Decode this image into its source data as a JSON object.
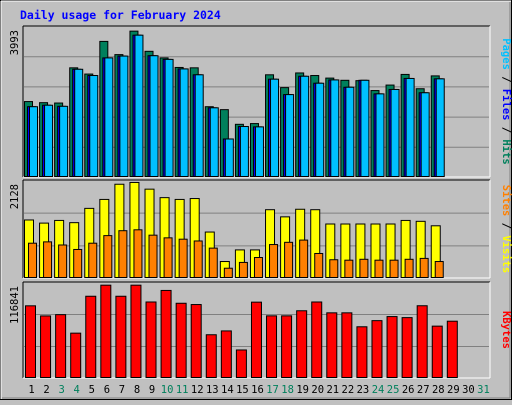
{
  "colors": {
    "background": "#c0c0c0",
    "panel": "#c0c0c0",
    "title": "#0000ff",
    "hits": "#00805c",
    "files": "#0000ff",
    "pages": "#00c0ff",
    "visits": "#ffff00",
    "sites": "#ff8000",
    "kbytes": "#ff0000",
    "weekend": "#00805c",
    "weekday": "#000000"
  },
  "chart_data": [
    {
      "type": "bar",
      "title": "Daily usage for February 2024",
      "categories": [
        "1",
        "2",
        "3",
        "4",
        "5",
        "6",
        "7",
        "8",
        "9",
        "10",
        "11",
        "12",
        "13",
        "14",
        "15",
        "16",
        "17",
        "18",
        "19",
        "20",
        "21",
        "22",
        "23",
        "24",
        "25",
        "26",
        "27",
        "28",
        "29",
        "30",
        "31"
      ],
      "weekend_days": [
        "3",
        "4",
        "10",
        "11",
        "17",
        "18",
        "24",
        "25",
        "31"
      ],
      "ylabel_parts": [
        "Pages",
        "Files",
        "Hits"
      ],
      "ymax_label": "3993",
      "ylim": [
        0,
        3993
      ],
      "grid": true,
      "series": [
        {
          "name": "Hits",
          "values": [
            2070,
            2040,
            2030,
            2990,
            2820,
            3710,
            3350,
            3990,
            3440,
            3260,
            3000,
            2990,
            1930,
            1850,
            1450,
            1470,
            2800,
            2450,
            2850,
            2780,
            2710,
            2650,
            2640,
            2370,
            2520,
            2810,
            2420,
            2770,
            null,
            null,
            null
          ]
        },
        {
          "name": "Files",
          "values": [
            1930,
            1970,
            1940,
            2950,
            2780,
            3260,
            3310,
            3880,
            3320,
            3220,
            2960,
            2800,
            1900,
            1050,
            1390,
            1380,
            2680,
            2260,
            2760,
            2570,
            2660,
            2460,
            2650,
            2280,
            2400,
            2700,
            2310,
            2690,
            null,
            null,
            null
          ]
        },
        {
          "name": "Pages",
          "values": [
            1930,
            1970,
            1940,
            2950,
            2780,
            3260,
            3310,
            3880,
            3320,
            3220,
            2960,
            2800,
            1900,
            1050,
            1390,
            1380,
            2680,
            2260,
            2760,
            2570,
            2660,
            2460,
            2650,
            2280,
            2400,
            2700,
            2310,
            2690,
            null,
            null,
            null
          ]
        }
      ]
    },
    {
      "type": "bar",
      "categories": [
        "1",
        "2",
        "3",
        "4",
        "5",
        "6",
        "7",
        "8",
        "9",
        "10",
        "11",
        "12",
        "13",
        "14",
        "15",
        "16",
        "17",
        "18",
        "19",
        "20",
        "21",
        "22",
        "23",
        "24",
        "25",
        "26",
        "27",
        "28",
        "29",
        "30",
        "31"
      ],
      "ylabel_parts": [
        "Sites",
        "Visits"
      ],
      "ymax_label": "2128",
      "ylim": [
        0,
        2128
      ],
      "grid": true,
      "series": [
        {
          "name": "Visits",
          "values": [
            1310,
            1240,
            1300,
            1250,
            1570,
            1770,
            2110,
            2150,
            2000,
            1810,
            1770,
            1790,
            1040,
            380,
            640,
            640,
            1540,
            1380,
            1550,
            1540,
            1220,
            1220,
            1220,
            1220,
            1220,
            1300,
            1280,
            1180,
            null,
            null,
            null
          ]
        },
        {
          "name": "Sites",
          "values": [
            790,
            820,
            750,
            650,
            790,
            960,
            1070,
            1090,
            970,
            910,
            880,
            840,
            680,
            230,
            360,
            470,
            760,
            810,
            860,
            560,
            420,
            410,
            430,
            410,
            410,
            430,
            450,
            380,
            null,
            null,
            null
          ]
        }
      ]
    },
    {
      "type": "bar",
      "categories": [
        "1",
        "2",
        "3",
        "4",
        "5",
        "6",
        "7",
        "8",
        "9",
        "10",
        "11",
        "12",
        "13",
        "14",
        "15",
        "16",
        "17",
        "18",
        "19",
        "20",
        "21",
        "22",
        "23",
        "24",
        "25",
        "26",
        "27",
        "28",
        "29",
        "30",
        "31"
      ],
      "ylabel_parts": [
        "KBytes"
      ],
      "ymax_label": "116841",
      "ylim": [
        0,
        116841
      ],
      "grid": true,
      "series": [
        {
          "name": "KBytes",
          "values": [
            91200,
            78500,
            80100,
            56900,
            103200,
            117100,
            103200,
            117100,
            96000,
            110500,
            94400,
            92800,
            54900,
            59700,
            35800,
            95800,
            78600,
            78600,
            85000,
            96000,
            82400,
            82400,
            64900,
            72600,
            77700,
            76400,
            91300,
            65700,
            71900,
            null,
            null
          ]
        }
      ]
    }
  ]
}
